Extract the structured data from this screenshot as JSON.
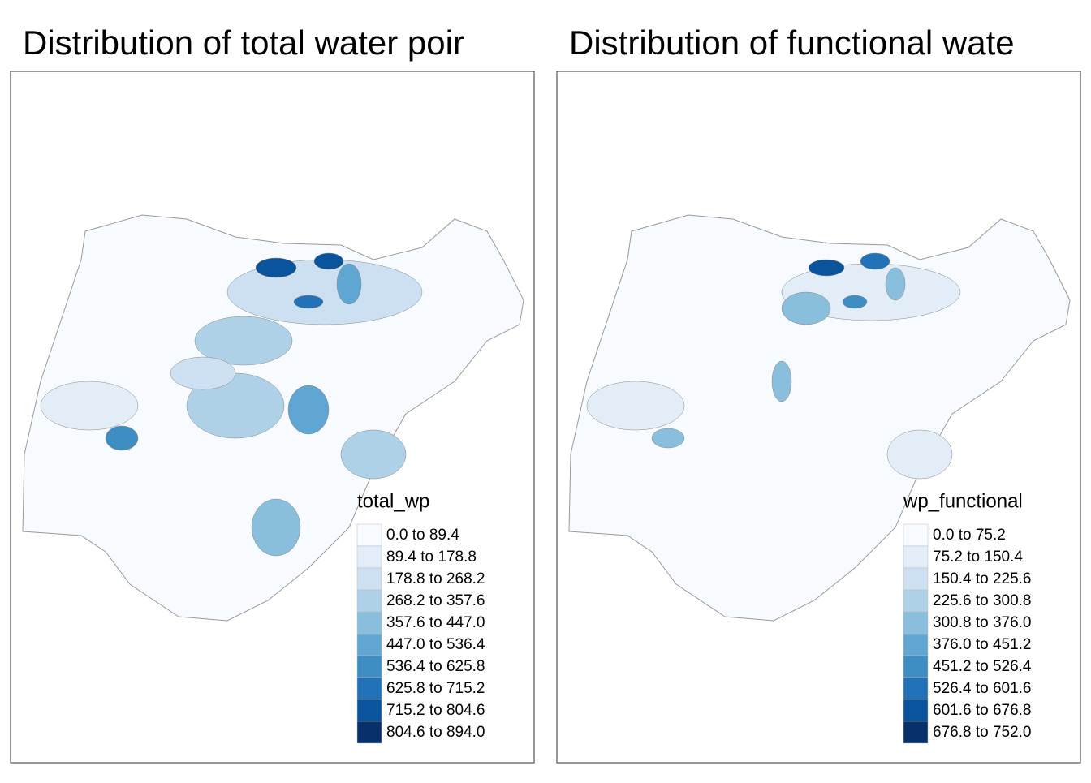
{
  "maps": [
    {
      "title": "Distribution of total  water poir",
      "legend": {
        "title": "total_wp",
        "items": [
          {
            "label": "0.0 to 89.4",
            "color": "#f7fbff"
          },
          {
            "label": "89.4 to 178.8",
            "color": "#e2edf8"
          },
          {
            "label": "178.8 to 268.2",
            "color": "#cde0f1"
          },
          {
            "label": "268.2 to 357.6",
            "color": "#afd1e7"
          },
          {
            "label": "357.6 to 447.0",
            "color": "#89bedc"
          },
          {
            "label": "447.0 to 536.4",
            "color": "#60a6d2"
          },
          {
            "label": "536.4 to 625.8",
            "color": "#3e8ec4"
          },
          {
            "label": "625.8 to 715.2",
            "color": "#2172b6"
          },
          {
            "label": "715.2 to 804.6",
            "color": "#0a549e"
          },
          {
            "label": "804.6 to 894.0",
            "color": "#08306b"
          }
        ]
      }
    },
    {
      "title": "Distribution of functional wate",
      "legend": {
        "title": "wp_functional",
        "items": [
          {
            "label": "0.0 to 75.2",
            "color": "#f7fbff"
          },
          {
            "label": "75.2 to 150.4",
            "color": "#e2edf8"
          },
          {
            "label": "150.4 to 225.6",
            "color": "#cde0f1"
          },
          {
            "label": "225.6 to 300.8",
            "color": "#afd1e7"
          },
          {
            "label": "300.8 to 376.0",
            "color": "#89bedc"
          },
          {
            "label": "376.0 to 451.2",
            "color": "#60a6d2"
          },
          {
            "label": "451.2 to 526.4",
            "color": "#3e8ec4"
          },
          {
            "label": "526.4 to 601.6",
            "color": "#2172b6"
          },
          {
            "label": "601.6 to 676.8",
            "color": "#0a549e"
          },
          {
            "label": "676.8 to 752.0",
            "color": "#08306b"
          }
        ]
      }
    }
  ]
}
